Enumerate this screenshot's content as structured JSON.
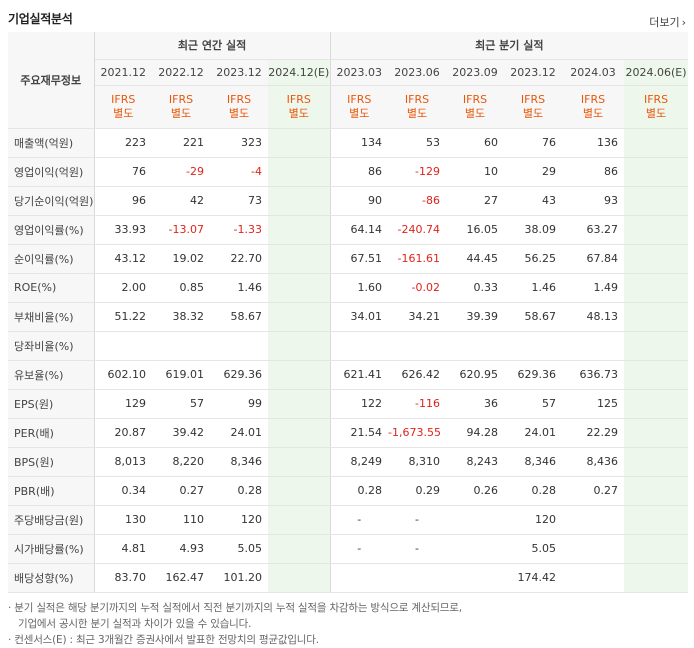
{
  "header": {
    "title": "기업실적분석",
    "more_label": "더보기"
  },
  "table": {
    "corner_label": "주요재무정보",
    "annual_group": "최근 연간 실적",
    "quarter_group": "최근 분기 실적",
    "annual_years": [
      "2021.12",
      "2022.12",
      "2023.12",
      "2024.12(E)"
    ],
    "quarter_periods": [
      "2023.03",
      "2023.06",
      "2023.09",
      "2023.12",
      "2024.03",
      "2024.06(E)"
    ],
    "ifrs_line1": "IFRS",
    "ifrs_line2": "별도",
    "rows": [
      {
        "label": "매출액(억원)",
        "annual": [
          "223",
          "221",
          "323",
          ""
        ],
        "quarter": [
          "134",
          "53",
          "60",
          "76",
          "136",
          ""
        ]
      },
      {
        "label": "영업이익(억원)",
        "annual": [
          "76",
          "-29",
          "-4",
          ""
        ],
        "quarter": [
          "86",
          "-129",
          "10",
          "29",
          "86",
          ""
        ]
      },
      {
        "label": "당기순이익(억원)",
        "annual": [
          "96",
          "42",
          "73",
          ""
        ],
        "quarter": [
          "90",
          "-86",
          "27",
          "43",
          "93",
          ""
        ]
      },
      {
        "label": "영업이익률(%)",
        "annual": [
          "33.93",
          "-13.07",
          "-1.33",
          ""
        ],
        "quarter": [
          "64.14",
          "-240.74",
          "16.05",
          "38.09",
          "63.27",
          ""
        ]
      },
      {
        "label": "순이익률(%)",
        "annual": [
          "43.12",
          "19.02",
          "22.70",
          ""
        ],
        "quarter": [
          "67.51",
          "-161.61",
          "44.45",
          "56.25",
          "67.84",
          ""
        ]
      },
      {
        "label": "ROE(%)",
        "annual": [
          "2.00",
          "0.85",
          "1.46",
          ""
        ],
        "quarter": [
          "1.60",
          "-0.02",
          "0.33",
          "1.46",
          "1.49",
          ""
        ]
      },
      {
        "label": "부채비율(%)",
        "annual": [
          "51.22",
          "38.32",
          "58.67",
          ""
        ],
        "quarter": [
          "34.01",
          "34.21",
          "39.39",
          "58.67",
          "48.13",
          ""
        ]
      },
      {
        "label": "당좌비율(%)",
        "annual": [
          "",
          "",
          "",
          ""
        ],
        "quarter": [
          "",
          "",
          "",
          "",
          "",
          ""
        ]
      },
      {
        "label": "유보율(%)",
        "annual": [
          "602.10",
          "619.01",
          "629.36",
          ""
        ],
        "quarter": [
          "621.41",
          "626.42",
          "620.95",
          "629.36",
          "636.73",
          ""
        ]
      },
      {
        "label": "EPS(원)",
        "annual": [
          "129",
          "57",
          "99",
          ""
        ],
        "quarter": [
          "122",
          "-116",
          "36",
          "57",
          "125",
          ""
        ]
      },
      {
        "label": "PER(배)",
        "annual": [
          "20.87",
          "39.42",
          "24.01",
          ""
        ],
        "quarter": [
          "21.54",
          "-1,673.55",
          "94.28",
          "24.01",
          "22.29",
          ""
        ]
      },
      {
        "label": "BPS(원)",
        "annual": [
          "8,013",
          "8,220",
          "8,346",
          ""
        ],
        "quarter": [
          "8,249",
          "8,310",
          "8,243",
          "8,346",
          "8,436",
          ""
        ]
      },
      {
        "label": "PBR(배)",
        "annual": [
          "0.34",
          "0.27",
          "0.28",
          ""
        ],
        "quarter": [
          "0.28",
          "0.29",
          "0.26",
          "0.28",
          "0.27",
          ""
        ]
      },
      {
        "label": "주당배당금(원)",
        "annual": [
          "130",
          "110",
          "120",
          ""
        ],
        "quarter": [
          "-",
          "-",
          "",
          "120",
          "",
          ""
        ]
      },
      {
        "label": "시가배당률(%)",
        "annual": [
          "4.81",
          "4.93",
          "5.05",
          ""
        ],
        "quarter": [
          "-",
          "-",
          "",
          "5.05",
          "",
          ""
        ]
      },
      {
        "label": "배당성향(%)",
        "annual": [
          "83.70",
          "162.47",
          "101.20",
          ""
        ],
        "quarter": [
          "",
          "",
          "",
          "174.42",
          "",
          ""
        ]
      }
    ]
  },
  "notes": {
    "line1": "· 분기 실적은 해당 분기까지의 누적 실적에서 직전 분기까지의 누적 실적을 차감하는 방식으로 계산되므로,",
    "line2": "기업에서 공시한 분기 실적과 차이가 있을 수 있습니다.",
    "line3": "· 컨센서스(E) : 최근 3개월간 증권사에서 발표한 전망치의 평균값입니다."
  },
  "colors": {
    "negative": "#e0231b",
    "ifrs": "#e8580c",
    "estimate_bg": "#eef7ec"
  }
}
